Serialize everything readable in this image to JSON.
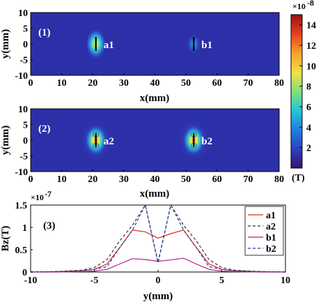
{
  "chart_data": [
    {
      "type": "heatmap",
      "panel_label": "(1)",
      "xlabel": "x(mm)",
      "ylabel": "y(mm)",
      "xlim": [
        0,
        80
      ],
      "ylim": [
        -10,
        10
      ],
      "xticks": [
        "0",
        "10",
        "20",
        "30",
        "40",
        "50",
        "60",
        "70",
        "80"
      ],
      "yticks": [
        "10",
        "5",
        "0",
        "-5",
        "-10"
      ],
      "sources": [
        {
          "label": "a1",
          "x": 21,
          "y": 0,
          "intensity": 0.55
        },
        {
          "label": "b1",
          "x": 52.5,
          "y": 0,
          "intensity": 0.12
        }
      ]
    },
    {
      "type": "heatmap",
      "panel_label": "(2)",
      "xlabel": "x(mm)",
      "ylabel": "y(mm)",
      "xlim": [
        0,
        80
      ],
      "ylim": [
        -10,
        10
      ],
      "xticks": [
        "0",
        "10",
        "20",
        "30",
        "40",
        "50",
        "60",
        "70",
        "80"
      ],
      "yticks": [
        "10",
        "5",
        "0",
        "-5",
        "-10"
      ],
      "sources": [
        {
          "label": "a2",
          "x": 21,
          "y": 0,
          "intensity": 1.0
        },
        {
          "label": "b2",
          "x": 52.5,
          "y": 0,
          "intensity": 1.0
        }
      ]
    },
    {
      "type": "line",
      "panel_label": "(3)",
      "xlabel": "y(mm)",
      "ylabel": "Bz(T)",
      "xlim": [
        -10,
        10
      ],
      "ylim": [
        0,
        1.5
      ],
      "xticks": [
        "-10",
        "-5",
        "0",
        "5",
        "10"
      ],
      "yticks": [
        "0",
        "0.5",
        "1",
        "1.5"
      ],
      "scale_base": "×10",
      "scale_exp": "-7",
      "x": [
        -10,
        -8,
        -6,
        -5,
        -4,
        -3,
        -2,
        -1,
        0,
        1,
        2,
        3,
        4,
        5,
        6,
        8,
        10
      ],
      "series": [
        {
          "name": "a1",
          "color": "#e02020",
          "dash": "solid",
          "values": [
            0.0,
            0.01,
            0.03,
            0.06,
            0.18,
            0.55,
            0.94,
            0.9,
            0.76,
            0.86,
            0.94,
            0.55,
            0.18,
            0.06,
            0.03,
            0.01,
            0.0
          ]
        },
        {
          "name": "a2",
          "color": "#333333",
          "dash": "dashed",
          "values": [
            0.0,
            0.01,
            0.04,
            0.1,
            0.28,
            0.7,
            1.05,
            1.55,
            0.22,
            1.55,
            1.05,
            0.7,
            0.28,
            0.1,
            0.04,
            0.01,
            0.0
          ]
        },
        {
          "name": "b1",
          "color": "#b0208a",
          "dash": "solid",
          "values": [
            0.0,
            0.0,
            0.01,
            0.02,
            0.06,
            0.18,
            0.3,
            0.28,
            0.24,
            0.27,
            0.31,
            0.18,
            0.06,
            0.02,
            0.01,
            0.0,
            0.0
          ]
        },
        {
          "name": "b2",
          "color": "#1f3f9e",
          "dash": "dashed",
          "values": [
            0.0,
            0.01,
            0.03,
            0.06,
            0.12,
            0.55,
            0.94,
            1.5,
            0.2,
            1.5,
            0.94,
            0.55,
            0.12,
            0.06,
            0.03,
            0.01,
            0.0
          ]
        }
      ]
    }
  ],
  "colorbar": {
    "ticks": [
      "14",
      "12",
      "10",
      "8",
      "6",
      "4",
      "2"
    ],
    "tick_values": [
      14,
      12,
      10,
      8,
      6,
      4,
      2
    ],
    "range": [
      0,
      15
    ],
    "unit": "(T)",
    "scale_base": "×10",
    "scale_exp": "-8",
    "colormap": [
      "#3b0f70",
      "#2c3fbf",
      "#1f7fe0",
      "#21c5d8",
      "#7fe07a",
      "#f3e046",
      "#f8a02a",
      "#e8431c",
      "#9b1010"
    ]
  }
}
